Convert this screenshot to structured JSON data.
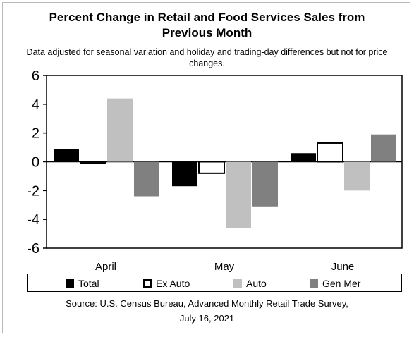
{
  "title_line1": "Percent Change in Retail and Food Services Sales from",
  "title_line2": "Previous Month",
  "subtitle": "Data adjusted for seasonal variation and holiday and trading-day differences but not for price changes.",
  "source_line1": "Source: U.S. Census Bureau, Advanced Monthly Retail Trade Survey,",
  "source_line2": "July 16, 2021",
  "chart_data": {
    "type": "bar",
    "title": "Percent Change in Retail and Food Services Sales from Previous Month",
    "subtitle": "Data adjusted for seasonal variation and holiday and trading-day differences but not for price changes.",
    "categories": [
      "April",
      "May",
      "June"
    ],
    "series": [
      {
        "name": "Total",
        "values": [
          0.9,
          -1.7,
          0.6
        ],
        "color": "#000000",
        "stroke": "#000000"
      },
      {
        "name": "Ex Auto",
        "values": [
          -0.1,
          -0.8,
          1.3
        ],
        "color": "#ffffff",
        "stroke": "#000000"
      },
      {
        "name": "Auto",
        "values": [
          4.4,
          -4.6,
          -2.0
        ],
        "color": "#c0c0c0",
        "stroke": "#c0c0c0"
      },
      {
        "name": "Gen Mer",
        "values": [
          -2.4,
          -3.1,
          1.9
        ],
        "color": "#808080",
        "stroke": "#808080"
      }
    ],
    "yticks": [
      "6",
      "4",
      "2",
      "0",
      "-2",
      "-4",
      "-6"
    ],
    "ylim": [
      -6,
      6
    ],
    "grid": false,
    "legend_position": "bottom",
    "xlabel": "",
    "ylabel": ""
  }
}
